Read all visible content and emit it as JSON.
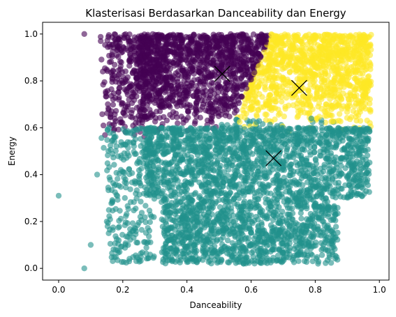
{
  "chart_data": {
    "type": "scatter",
    "title": "Klasterisasi Berdasarkan Danceability dan Energy",
    "xlabel": "Danceability",
    "ylabel": "Energy",
    "xlim": [
      -0.05,
      1.03
    ],
    "ylim": [
      -0.05,
      1.05
    ],
    "xticks": [
      0.0,
      0.2,
      0.4,
      0.6,
      0.8,
      1.0
    ],
    "yticks": [
      0.0,
      0.2,
      0.4,
      0.6,
      0.8,
      1.0
    ],
    "xtick_labels": [
      "0.0",
      "0.2",
      "0.4",
      "0.6",
      "0.8",
      "1.0"
    ],
    "ytick_labels": [
      "0.0",
      "0.2",
      "0.4",
      "0.6",
      "0.8",
      "1.0"
    ],
    "grid": false,
    "marker_alpha": 0.6,
    "clusters": [
      {
        "color": "#440154",
        "region": "upper-left: energy above ~0.58, danceability below ~0.65",
        "centroid": [
          0.51,
          0.83
        ]
      },
      {
        "color": "#fde725",
        "region": "upper-right: energy above ~0.58, danceability above ~0.65",
        "centroid": [
          0.75,
          0.77
        ]
      },
      {
        "color": "#21918c",
        "region": "lower: energy below ~0.6",
        "centroid": [
          0.67,
          0.47
        ]
      }
    ],
    "outliers": [
      {
        "x": 0.0,
        "y": 0.31,
        "cluster": 2
      },
      {
        "x": 0.08,
        "y": 0.0,
        "cluster": 2
      },
      {
        "x": 0.1,
        "y": 0.1,
        "cluster": 2
      },
      {
        "x": 0.08,
        "y": 1.0,
        "cluster": 0
      },
      {
        "x": 0.12,
        "y": 0.4,
        "cluster": 2
      },
      {
        "x": 0.15,
        "y": 0.2,
        "cluster": 2
      },
      {
        "x": 0.19,
        "y": 0.07,
        "cluster": 2
      },
      {
        "x": 0.22,
        "y": 0.03,
        "cluster": 2
      }
    ],
    "centroid_marker": "x",
    "centroid_color": "#000000"
  }
}
